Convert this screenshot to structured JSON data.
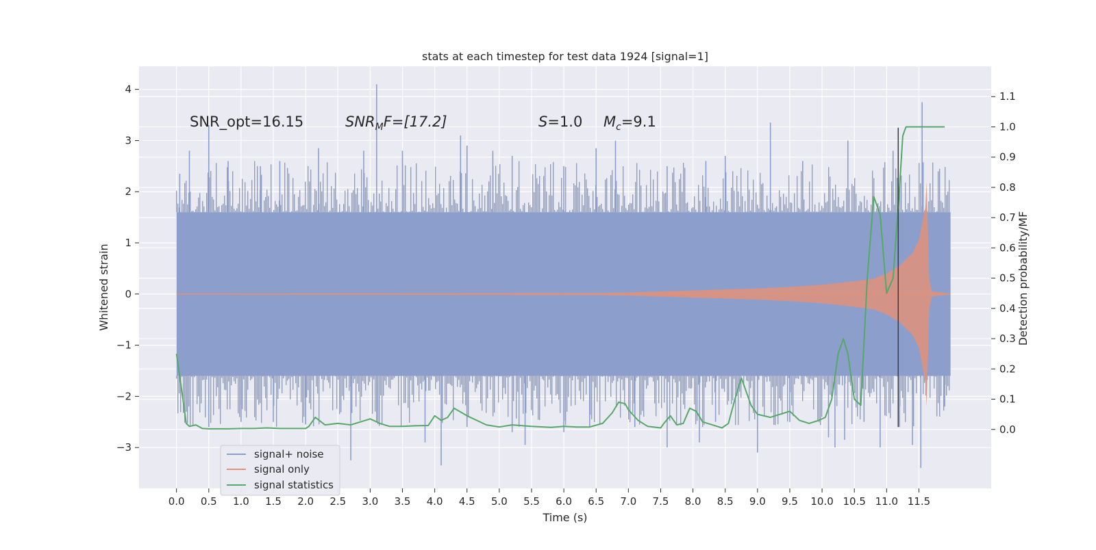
{
  "chart_data": {
    "type": "line",
    "title": "stats at each timestep for test data 1924 [signal=1]",
    "xlabel": "Time (s)",
    "ylabel": "Whitened strain",
    "y2label": "Detection probability/MF",
    "xlim": [
      -0.58,
      12.62
    ],
    "ylim": [
      -3.8,
      4.45
    ],
    "y2lim": [
      -0.195,
      1.2
    ],
    "xticks": [
      0.0,
      0.5,
      1.0,
      1.5,
      2.0,
      2.5,
      3.0,
      3.5,
      4.0,
      4.5,
      5.0,
      5.5,
      6.0,
      6.5,
      7.0,
      7.5,
      8.0,
      8.5,
      9.0,
      9.5,
      10.0,
      10.5,
      11.0,
      11.5
    ],
    "xtick_labels": [
      "0.0",
      "0.5",
      "1.0",
      "1.5",
      "2.0",
      "2.5",
      "3.0",
      "3.5",
      "4.0",
      "4.5",
      "5.0",
      "5.5",
      "6.0",
      "6.5",
      "7.0",
      "7.5",
      "8.0",
      "8.5",
      "9.0",
      "9.5",
      "10.0",
      "10.5",
      "11.0",
      "11.5"
    ],
    "yticks": [
      -3,
      -2,
      -1,
      0,
      1,
      2,
      3,
      4
    ],
    "ytick_labels": [
      "−3",
      "−2",
      "−1",
      "0",
      "1",
      "2",
      "3",
      "4"
    ],
    "y2ticks": [
      0.0,
      0.1,
      0.2,
      0.3,
      0.4,
      0.5,
      0.6,
      0.7,
      0.8,
      0.9,
      1.0,
      1.1
    ],
    "y2tick_labels": [
      "0.0",
      "0.1",
      "0.2",
      "0.3",
      "0.4",
      "0.5",
      "0.6",
      "0.7",
      "0.8",
      "0.9",
      "1.0",
      "1.1"
    ],
    "grid": true,
    "legend_position": "lower-left",
    "noise": {
      "name": "signal+ noise",
      "color": "#8c9fcc",
      "t_start": 0.0,
      "t_end": 11.99,
      "band": 1.6,
      "peaks": [
        [
          0.05,
          2.35
        ],
        [
          0.2,
          2.8
        ],
        [
          0.5,
          3.3
        ],
        [
          0.8,
          2.6
        ],
        [
          1.3,
          2.5
        ],
        [
          1.6,
          2.6
        ],
        [
          2.2,
          2.85
        ],
        [
          2.9,
          2.8
        ],
        [
          3.1,
          4.1
        ],
        [
          3.5,
          2.8
        ],
        [
          4.4,
          3.1
        ],
        [
          4.5,
          2.9
        ],
        [
          4.9,
          2.8
        ],
        [
          5.2,
          2.7
        ],
        [
          6.0,
          2.5
        ],
        [
          6.5,
          2.85
        ],
        [
          6.8,
          3.0
        ],
        [
          7.6,
          2.5
        ],
        [
          8.2,
          2.6
        ],
        [
          8.5,
          2.7
        ],
        [
          9.2,
          3.35
        ],
        [
          9.7,
          2.6
        ],
        [
          10.4,
          3.0
        ],
        [
          11.1,
          2.8
        ],
        [
          11.55,
          3.75
        ],
        [
          11.8,
          2.4
        ]
      ],
      "troughs": [
        [
          0.05,
          -1.7
        ],
        [
          0.15,
          -2.3
        ],
        [
          0.5,
          -2.6
        ],
        [
          1.0,
          -2.5
        ],
        [
          1.5,
          -2.5
        ],
        [
          2.0,
          -2.55
        ],
        [
          2.7,
          -3.25
        ],
        [
          3.1,
          -2.5
        ],
        [
          3.85,
          -2.9
        ],
        [
          4.1,
          -3.35
        ],
        [
          4.5,
          -2.6
        ],
        [
          5.2,
          -2.7
        ],
        [
          5.4,
          -2.95
        ],
        [
          6.0,
          -2.7
        ],
        [
          6.4,
          -2.6
        ],
        [
          7.1,
          -2.6
        ],
        [
          7.6,
          -3.0
        ],
        [
          8.1,
          -2.9
        ],
        [
          8.35,
          -2.5
        ],
        [
          9.0,
          -3.1
        ],
        [
          9.5,
          -2.5
        ],
        [
          10.1,
          -2.8
        ],
        [
          10.2,
          -3.0
        ],
        [
          10.35,
          -2.85
        ],
        [
          10.65,
          -2.5
        ],
        [
          10.9,
          -3.0
        ],
        [
          11.2,
          -2.6
        ],
        [
          11.4,
          -2.95
        ],
        [
          11.53,
          -3.4
        ],
        [
          11.9,
          -2.2
        ]
      ]
    },
    "signal": {
      "name": "signal only",
      "color": "#e0917a",
      "envelope": [
        [
          0.0,
          0.01
        ],
        [
          6.5,
          0.02
        ],
        [
          7.0,
          0.03
        ],
        [
          8.0,
          0.07
        ],
        [
          9.0,
          0.11
        ],
        [
          9.5,
          0.14
        ],
        [
          10.0,
          0.18
        ],
        [
          10.5,
          0.25
        ],
        [
          10.8,
          0.3
        ],
        [
          11.0,
          0.4
        ],
        [
          11.2,
          0.55
        ],
        [
          11.4,
          0.8
        ],
        [
          11.5,
          1.05
        ],
        [
          11.6,
          1.7
        ],
        [
          11.62,
          2.2
        ],
        [
          11.66,
          0.3
        ],
        [
          11.7,
          0.05
        ],
        [
          11.99,
          0.01
        ]
      ]
    },
    "statistics": {
      "name": "signal statistics",
      "color": "#55a868",
      "x": [
        0.0,
        0.1,
        0.15,
        0.2,
        0.3,
        0.4,
        0.5,
        0.6,
        0.8,
        1.0,
        1.2,
        1.4,
        1.6,
        1.8,
        2.0,
        2.05,
        2.15,
        2.3,
        2.5,
        2.7,
        2.85,
        3.0,
        3.15,
        3.3,
        3.5,
        3.7,
        3.9,
        4.0,
        4.1,
        4.2,
        4.3,
        4.5,
        4.8,
        5.0,
        5.2,
        5.5,
        5.8,
        6.0,
        6.2,
        6.4,
        6.6,
        6.75,
        6.85,
        6.95,
        7.0,
        7.15,
        7.3,
        7.5,
        7.55,
        7.65,
        7.75,
        7.85,
        7.95,
        8.05,
        8.15,
        8.3,
        8.45,
        8.55,
        8.65,
        8.75,
        8.8,
        8.9,
        9.0,
        9.2,
        9.35,
        9.5,
        9.65,
        9.8,
        9.95,
        10.05,
        10.15,
        10.25,
        10.33,
        10.4,
        10.5,
        10.6,
        10.7,
        10.8,
        10.9,
        11.0,
        11.1,
        11.2,
        11.25,
        11.3,
        11.4,
        11.6,
        11.8,
        11.9
      ],
      "y": [
        0.25,
        0.1,
        0.02,
        0.01,
        0.015,
        0.003,
        0.002,
        0.002,
        0.002,
        0.003,
        0.003,
        0.005,
        0.003,
        0.003,
        0.003,
        0.01,
        0.04,
        0.015,
        0.02,
        0.015,
        0.025,
        0.035,
        0.02,
        0.01,
        0.01,
        0.012,
        0.013,
        0.045,
        0.03,
        0.04,
        0.07,
        0.045,
        0.015,
        0.008,
        0.015,
        0.01,
        0.007,
        0.01,
        0.008,
        0.008,
        0.02,
        0.055,
        0.09,
        0.085,
        0.065,
        0.03,
        0.01,
        0.005,
        0.02,
        0.045,
        0.015,
        0.02,
        0.07,
        0.06,
        0.025,
        0.015,
        0.005,
        0.02,
        0.1,
        0.17,
        0.14,
        0.08,
        0.05,
        0.04,
        0.05,
        0.06,
        0.03,
        0.02,
        0.03,
        0.04,
        0.1,
        0.25,
        0.3,
        0.25,
        0.1,
        0.08,
        0.5,
        0.77,
        0.71,
        0.45,
        0.5,
        0.8,
        0.97,
        1.0,
        1.0,
        1.0,
        1.0,
        1.0
      ]
    },
    "marker_line": {
      "x": 11.18,
      "y_top": 3.25,
      "y_bottom": -2.6,
      "color": "#3a3a3a"
    },
    "annotations": {
      "snr_opt": "SNR_opt=16.15",
      "snr_mf_sym": "SNR",
      "snr_mf_sub": "M",
      "snr_mf_rest": "F=[17.2]",
      "s_sym": "S",
      "s_rest": "=1.0",
      "mc_sym": "M",
      "mc_sub": "c",
      "mc_rest": "=9.1"
    },
    "legend": [
      {
        "label": "signal+ noise",
        "color": "#8c9fcc"
      },
      {
        "label": "signal only",
        "color": "#e0917a"
      },
      {
        "label": "signal statistics",
        "color": "#55a868"
      }
    ]
  },
  "colors": {
    "plot_background": "#eaeaf2",
    "grid": "#ffffff",
    "page_background": "#ffffff",
    "text": "#262626"
  }
}
